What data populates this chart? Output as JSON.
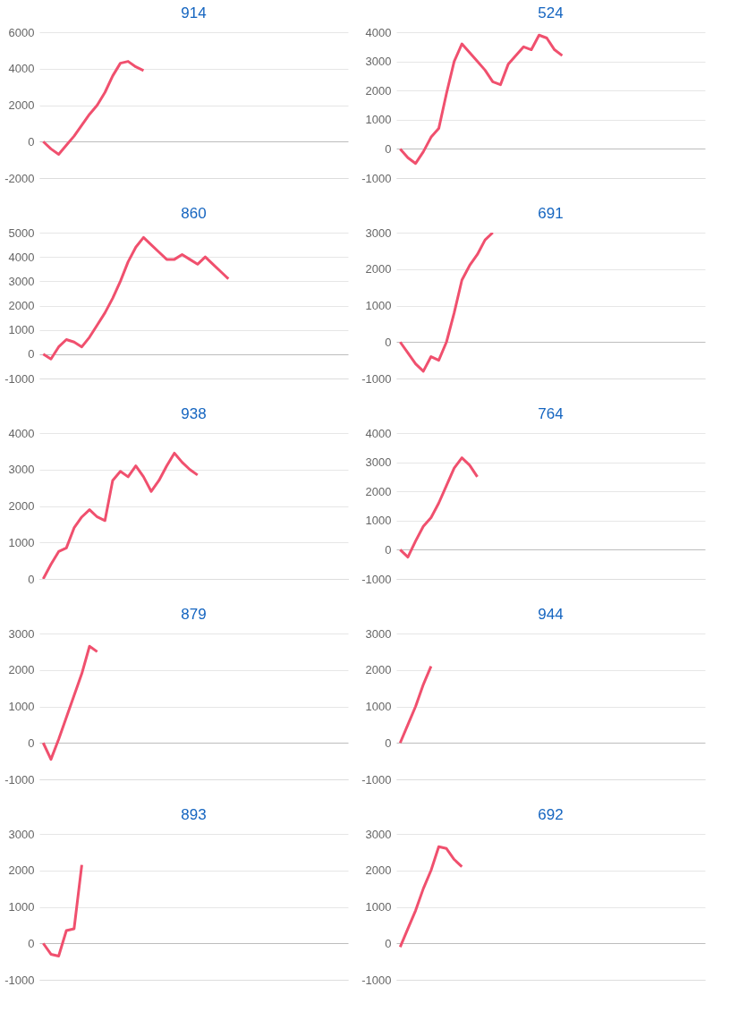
{
  "chart_data": [
    {
      "type": "line",
      "title": "914",
      "categories": [
        null,
        null,
        null,
        null,
        null,
        null,
        null,
        null,
        null,
        null,
        null,
        null,
        null,
        null,
        null,
        null,
        null,
        null,
        null,
        null,
        null,
        null,
        null,
        null,
        null,
        null,
        null,
        null,
        null,
        null,
        null,
        null,
        null,
        null,
        null,
        null,
        null,
        null,
        null,
        null
      ],
      "series": [
        {
          "color": "#f0506e",
          "values": [
            0,
            -400,
            -700,
            -200,
            300,
            900,
            1500,
            2000,
            2700,
            3600,
            4300,
            4400,
            4100,
            3900,
            null,
            null,
            null,
            null,
            null,
            null,
            null,
            null,
            null,
            null,
            null,
            null,
            null,
            null,
            null,
            null,
            null,
            null,
            null,
            null,
            null,
            null,
            null,
            null,
            null,
            null
          ]
        }
      ],
      "ylim": [
        -2000,
        6000
      ],
      "yticks": [
        -2000,
        0,
        2000,
        4000,
        6000
      ],
      "grid": "y",
      "tick_labels": "y"
    },
    {
      "type": "line",
      "title": "524",
      "categories": [
        null,
        null,
        null,
        null,
        null,
        null,
        null,
        null,
        null,
        null,
        null,
        null,
        null,
        null,
        null,
        null,
        null,
        null,
        null,
        null,
        null,
        null,
        null,
        null,
        null,
        null,
        null,
        null,
        null,
        null,
        null,
        null,
        null,
        null,
        null,
        null,
        null,
        null,
        null,
        null
      ],
      "series": [
        {
          "color": "#f0506e",
          "values": [
            0,
            -300,
            -500,
            -100,
            400,
            700,
            1900,
            3000,
            3600,
            3300,
            3000,
            2700,
            2300,
            2200,
            2900,
            3200,
            3500,
            3400,
            3900,
            3800,
            3400,
            3200,
            null,
            null,
            null,
            null,
            null,
            null,
            null,
            null,
            null,
            null,
            null,
            null,
            null,
            null,
            null,
            null,
            null,
            null
          ]
        }
      ],
      "ylim": [
        -1000,
        4000
      ],
      "yticks": [
        -1000,
        0,
        1000,
        2000,
        3000,
        4000
      ],
      "grid": "y",
      "tick_labels": "y"
    },
    {
      "type": "line",
      "title": "860",
      "categories": [
        null,
        null,
        null,
        null,
        null,
        null,
        null,
        null,
        null,
        null,
        null,
        null,
        null,
        null,
        null,
        null,
        null,
        null,
        null,
        null,
        null,
        null,
        null,
        null,
        null,
        null,
        null,
        null,
        null,
        null,
        null,
        null,
        null,
        null,
        null,
        null,
        null,
        null,
        null,
        null
      ],
      "series": [
        {
          "color": "#f0506e",
          "values": [
            0,
            -200,
            300,
            600,
            500,
            300,
            700,
            1200,
            1700,
            2300,
            3000,
            3800,
            4400,
            4800,
            4500,
            4200,
            3900,
            3900,
            4100,
            3900,
            3700,
            4000,
            3700,
            3400,
            3100,
            null,
            null,
            null,
            null,
            null,
            null,
            null,
            null,
            null,
            null,
            null,
            null,
            null,
            null,
            null
          ]
        }
      ],
      "ylim": [
        -1000,
        5000
      ],
      "yticks": [
        -1000,
        0,
        1000,
        2000,
        3000,
        4000,
        5000
      ],
      "grid": "y",
      "tick_labels": "y"
    },
    {
      "type": "line",
      "title": "691",
      "categories": [
        null,
        null,
        null,
        null,
        null,
        null,
        null,
        null,
        null,
        null,
        null,
        null,
        null,
        null,
        null,
        null,
        null,
        null,
        null,
        null,
        null,
        null,
        null,
        null,
        null,
        null,
        null,
        null,
        null,
        null,
        null,
        null,
        null,
        null,
        null,
        null,
        null,
        null,
        null,
        null
      ],
      "series": [
        {
          "color": "#f0506e",
          "values": [
            0,
            -300,
            -600,
            -800,
            -400,
            -500,
            0,
            800,
            1700,
            2100,
            2400,
            2800,
            3000,
            null,
            null,
            null,
            null,
            null,
            null,
            null,
            null,
            null,
            null,
            null,
            null,
            null,
            null,
            null,
            null,
            null,
            null,
            null,
            null,
            null,
            null,
            null,
            null,
            null,
            null,
            null
          ]
        }
      ],
      "ylim": [
        -1000,
        3000
      ],
      "yticks": [
        -1000,
        0,
        1000,
        2000,
        3000
      ],
      "grid": "y",
      "tick_labels": "y"
    },
    {
      "type": "line",
      "title": "938",
      "categories": [
        null,
        null,
        null,
        null,
        null,
        null,
        null,
        null,
        null,
        null,
        null,
        null,
        null,
        null,
        null,
        null,
        null,
        null,
        null,
        null,
        null,
        null,
        null,
        null,
        null,
        null,
        null,
        null,
        null,
        null,
        null,
        null,
        null,
        null,
        null,
        null,
        null,
        null,
        null,
        null
      ],
      "series": [
        {
          "color": "#f0506e",
          "values": [
            0,
            400,
            750,
            850,
            1400,
            1700,
            1900,
            1700,
            1600,
            2700,
            2950,
            2800,
            3100,
            2800,
            2400,
            2700,
            3100,
            3450,
            3200,
            3000,
            2850,
            null,
            null,
            null,
            null,
            null,
            null,
            null,
            null,
            null,
            null,
            null,
            null,
            null,
            null,
            null,
            null,
            null,
            null,
            null
          ]
        }
      ],
      "ylim": [
        0,
        4000
      ],
      "yticks": [
        0,
        1000,
        2000,
        3000,
        4000
      ],
      "grid": "y",
      "tick_labels": "y"
    },
    {
      "type": "line",
      "title": "764",
      "categories": [
        null,
        null,
        null,
        null,
        null,
        null,
        null,
        null,
        null,
        null,
        null,
        null,
        null,
        null,
        null,
        null,
        null,
        null,
        null,
        null,
        null,
        null,
        null,
        null,
        null,
        null,
        null,
        null,
        null,
        null,
        null,
        null,
        null,
        null,
        null,
        null,
        null,
        null,
        null,
        null
      ],
      "series": [
        {
          "color": "#f0506e",
          "values": [
            0,
            -250,
            300,
            800,
            1100,
            1600,
            2200,
            2800,
            3150,
            2900,
            2500,
            null,
            null,
            null,
            null,
            null,
            null,
            null,
            null,
            null,
            null,
            null,
            null,
            null,
            null,
            null,
            null,
            null,
            null,
            null,
            null,
            null,
            null,
            null,
            null,
            null,
            null,
            null,
            null,
            null
          ]
        }
      ],
      "ylim": [
        -1000,
        4000
      ],
      "yticks": [
        -1000,
        0,
        1000,
        2000,
        3000,
        4000
      ],
      "grid": "y",
      "tick_labels": "y"
    },
    {
      "type": "line",
      "title": "879",
      "categories": [
        null,
        null,
        null,
        null,
        null,
        null,
        null,
        null,
        null,
        null,
        null,
        null,
        null,
        null,
        null,
        null,
        null,
        null,
        null,
        null,
        null,
        null,
        null,
        null,
        null,
        null,
        null,
        null,
        null,
        null,
        null,
        null,
        null,
        null,
        null,
        null,
        null,
        null,
        null,
        null
      ],
      "series": [
        {
          "color": "#f0506e",
          "values": [
            0,
            -450,
            100,
            700,
            1300,
            1900,
            2650,
            2500,
            null,
            null,
            null,
            null,
            null,
            null,
            null,
            null,
            null,
            null,
            null,
            null,
            null,
            null,
            null,
            null,
            null,
            null,
            null,
            null,
            null,
            null,
            null,
            null,
            null,
            null,
            null,
            null,
            null,
            null,
            null,
            null
          ]
        }
      ],
      "ylim": [
        -1000,
        3000
      ],
      "yticks": [
        -1000,
        0,
        1000,
        2000,
        3000
      ],
      "grid": "y",
      "tick_labels": "y"
    },
    {
      "type": "line",
      "title": "944",
      "categories": [
        null,
        null,
        null,
        null,
        null,
        null,
        null,
        null,
        null,
        null,
        null,
        null,
        null,
        null,
        null,
        null,
        null,
        null,
        null,
        null,
        null,
        null,
        null,
        null,
        null,
        null,
        null,
        null,
        null,
        null,
        null,
        null,
        null,
        null,
        null,
        null,
        null,
        null,
        null,
        null
      ],
      "series": [
        {
          "color": "#f0506e",
          "values": [
            0,
            500,
            1000,
            1600,
            2100,
            null,
            null,
            null,
            null,
            null,
            null,
            null,
            null,
            null,
            null,
            null,
            null,
            null,
            null,
            null,
            null,
            null,
            null,
            null,
            null,
            null,
            null,
            null,
            null,
            null,
            null,
            null,
            null,
            null,
            null,
            null,
            null,
            null,
            null,
            null
          ]
        }
      ],
      "ylim": [
        -1000,
        3000
      ],
      "yticks": [
        -1000,
        0,
        1000,
        2000,
        3000
      ],
      "grid": "y",
      "tick_labels": "y"
    },
    {
      "type": "line",
      "title": "893",
      "categories": [
        null,
        null,
        null,
        null,
        null,
        null,
        null,
        null,
        null,
        null,
        null,
        null,
        null,
        null,
        null,
        null,
        null,
        null,
        null,
        null,
        null,
        null,
        null,
        null,
        null,
        null,
        null,
        null,
        null,
        null,
        null,
        null,
        null,
        null,
        null,
        null,
        null,
        null,
        null,
        null
      ],
      "series": [
        {
          "color": "#f0506e",
          "values": [
            0,
            -300,
            -350,
            350,
            400,
            2150,
            null,
            null,
            null,
            null,
            null,
            null,
            null,
            null,
            null,
            null,
            null,
            null,
            null,
            null,
            null,
            null,
            null,
            null,
            null,
            null,
            null,
            null,
            null,
            null,
            null,
            null,
            null,
            null,
            null,
            null,
            null,
            null,
            null,
            null
          ]
        }
      ],
      "ylim": [
        -1000,
        3000
      ],
      "yticks": [
        -1000,
        0,
        1000,
        2000,
        3000
      ],
      "grid": "y",
      "tick_labels": "y"
    },
    {
      "type": "line",
      "title": "692",
      "categories": [
        null,
        null,
        null,
        null,
        null,
        null,
        null,
        null,
        null,
        null,
        null,
        null,
        null,
        null,
        null,
        null,
        null,
        null,
        null,
        null,
        null,
        null,
        null,
        null,
        null,
        null,
        null,
        null,
        null,
        null,
        null,
        null,
        null,
        null,
        null,
        null,
        null,
        null,
        null,
        null
      ],
      "series": [
        {
          "color": "#f0506e",
          "values": [
            -100,
            400,
            900,
            1500,
            2000,
            2650,
            2600,
            2300,
            2100,
            null,
            null,
            null,
            null,
            null,
            null,
            null,
            null,
            null,
            null,
            null,
            null,
            null,
            null,
            null,
            null,
            null,
            null,
            null,
            null,
            null,
            null,
            null,
            null,
            null,
            null,
            null,
            null,
            null,
            null,
            null
          ]
        }
      ],
      "ylim": [
        -1000,
        3000
      ],
      "yticks": [
        -1000,
        0,
        1000,
        2000,
        3000
      ],
      "grid": "y",
      "tick_labels": "y"
    }
  ]
}
